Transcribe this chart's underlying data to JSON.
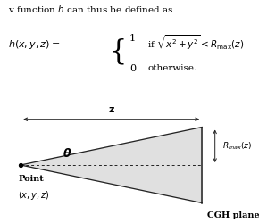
{
  "fig_width": 2.9,
  "fig_height": 2.5,
  "dpi": 100,
  "bg_color": "#ffffff",
  "triangle_color": "#e0e0e0",
  "line_color": "#222222",
  "arrow_color": "#222222",
  "z_label": "$\\mathbf{z}$",
  "theta_label": "$\\boldsymbol{\\theta}$",
  "rmax_label": "$R_{max}(z)$",
  "cgh_label": "CGH plane",
  "point_label_line1": "Point",
  "point_label_line2": "$(x, y, z)$",
  "intro_text": "v function $h$ can thus be defined as",
  "lhs_text": "$h(x, y, z) = $",
  "brace": "{",
  "row1_num": "1",
  "row1_cond": "if $\\sqrt{x^2 + y^2} < R_{\\mathrm{max}}(z)$",
  "row2_num": "0",
  "row2_cond": "otherwise.",
  "font_size_intro": 7.5,
  "font_size_formula": 8.0,
  "font_size_brace": 22,
  "font_size_diagram": 7.5
}
